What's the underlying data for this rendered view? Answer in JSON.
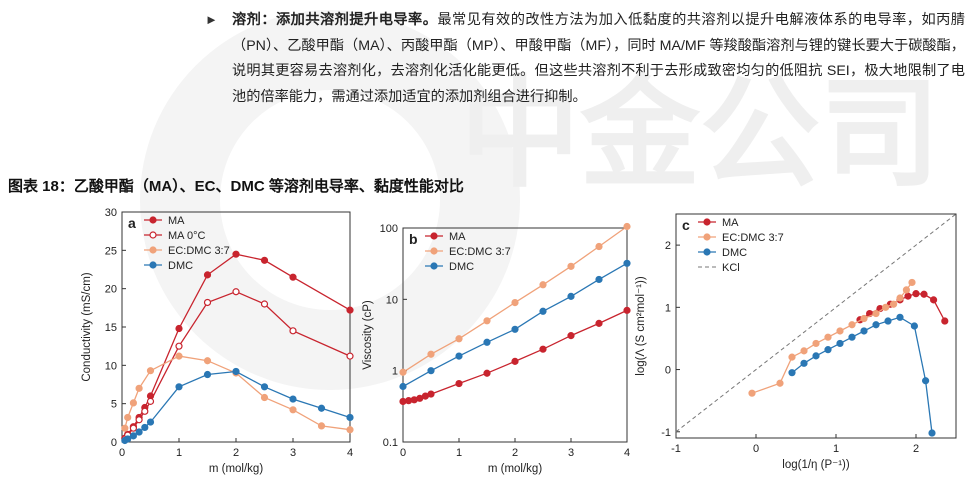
{
  "text": {
    "bullet_lead": "溶剂：添加共溶剂提升电导率。",
    "bullet_body": "最常见有效的改性方法为加入低黏度的共溶剂以提升电解液体系的电导率，如丙腈（PN）、乙酸甲酯（MA）、丙酸甲酯（MP）、甲酸甲酯（MF），同时 MA/MF 等羧酸酯溶剂与锂的键长要大于碳酸酯，说明其更容易去溶剂化，去溶剂化活化能更低。但这些共溶剂不利于去形成致密均匀的低阻抗 SEI，极大地限制了电池的倍率能力，需通过添加适宜的添加剂组合进行抑制。",
    "figure_caption": "图表 18：乙酸甲酯（MA）、EC、DMC 等溶剂电导率、黏度性能对比"
  },
  "watermark": {
    "text": "中金公司",
    "color": "#eeeeee"
  },
  "colors": {
    "MA": "#c8242e",
    "EC": "#f0a27a",
    "DMC": "#2a77b4",
    "KCl": "#777777",
    "MA0": "#c8242e"
  },
  "chart_data": [
    {
      "panel": "a",
      "type": "line",
      "xlabel": "m (mol/kg)",
      "ylabel": "Conductivity (mS/cm)",
      "xlim": [
        0,
        4
      ],
      "ylim": [
        0,
        30
      ],
      "xticks": [
        "0",
        "1",
        "2",
        "3",
        "4"
      ],
      "yticks": [
        "0",
        "5",
        "10",
        "15",
        "20",
        "25",
        "30"
      ],
      "legend": "top-left",
      "series": [
        {
          "name": "MA",
          "marker": "filled",
          "color": "#c8242e",
          "x": [
            0.05,
            0.1,
            0.2,
            0.3,
            0.4,
            0.5,
            1.0,
            1.5,
            2.0,
            2.5,
            3.0,
            4.0
          ],
          "y": [
            0.5,
            1.0,
            2.0,
            3.2,
            4.5,
            6.0,
            14.8,
            21.8,
            24.5,
            23.7,
            21.5,
            17.2
          ]
        },
        {
          "name": "MA 0°C",
          "marker": "open",
          "color": "#c8242e",
          "x": [
            0.05,
            0.1,
            0.2,
            0.3,
            0.4,
            0.5,
            1.0,
            1.5,
            2.0,
            2.5,
            3.0,
            4.0
          ],
          "y": [
            0.4,
            0.9,
            1.8,
            2.9,
            4.0,
            5.3,
            12.5,
            18.2,
            19.6,
            18.0,
            14.5,
            11.2
          ]
        },
        {
          "name": "EC:DMC 3:7",
          "marker": "filled",
          "color": "#f0a27a",
          "x": [
            0.05,
            0.1,
            0.2,
            0.3,
            0.5,
            1.0,
            1.5,
            2.0,
            2.5,
            3.0,
            3.5,
            4.0
          ],
          "y": [
            1.8,
            3.2,
            5.1,
            7.0,
            9.3,
            11.2,
            10.6,
            9.0,
            5.8,
            4.2,
            2.1,
            1.6
          ]
        },
        {
          "name": "DMC",
          "marker": "filled",
          "color": "#2a77b4",
          "x": [
            0.05,
            0.1,
            0.2,
            0.3,
            0.4,
            0.5,
            1.0,
            1.5,
            2.0,
            2.5,
            3.0,
            3.5,
            4.0
          ],
          "y": [
            0.2,
            0.4,
            0.8,
            1.3,
            1.9,
            2.6,
            7.2,
            8.8,
            9.2,
            7.2,
            5.6,
            4.4,
            3.2
          ]
        }
      ]
    },
    {
      "panel": "b",
      "type": "line",
      "scale": "log",
      "xlabel": "m (mol/kg)",
      "ylabel": "Viscosity (cP)",
      "xlim": [
        0,
        4
      ],
      "ylim": [
        0.1,
        100
      ],
      "xticks": [
        "0",
        "1",
        "2",
        "3",
        "4"
      ],
      "yticks": [
        "0.1",
        "1",
        "10",
        "100"
      ],
      "legend": "top-left",
      "series": [
        {
          "name": "MA",
          "marker": "filled",
          "color": "#c8242e",
          "x": [
            0,
            0.1,
            0.2,
            0.3,
            0.4,
            0.5,
            1.0,
            1.5,
            2.0,
            2.5,
            3.0,
            3.5,
            4.0
          ],
          "y": [
            0.37,
            0.38,
            0.39,
            0.41,
            0.44,
            0.47,
            0.66,
            0.92,
            1.35,
            2.0,
            3.1,
            4.6,
            7.0
          ]
        },
        {
          "name": "EC:DMC 3:7",
          "marker": "filled",
          "color": "#f0a27a",
          "x": [
            0,
            0.5,
            1.0,
            1.5,
            2.0,
            2.5,
            3.0,
            3.5,
            4.0
          ],
          "y": [
            0.95,
            1.7,
            2.8,
            5.0,
            9.0,
            16,
            29,
            55,
            105
          ]
        },
        {
          "name": "DMC",
          "marker": "filled",
          "color": "#2a77b4",
          "x": [
            0,
            0.5,
            1.0,
            1.5,
            2.0,
            2.5,
            3.0,
            3.5,
            4.0
          ],
          "y": [
            0.6,
            1.0,
            1.6,
            2.5,
            3.8,
            6.8,
            11,
            19,
            32
          ]
        }
      ]
    },
    {
      "panel": "c",
      "type": "line",
      "xlabel": "log(1/η (P⁻¹))",
      "ylabel": "log(Λ (S cm²mol⁻¹))",
      "xlim": [
        -1,
        2.5
      ],
      "ylim": [
        -1.1,
        2.5
      ],
      "xticks": [
        "-1",
        "0",
        "1",
        "2"
      ],
      "yticks": [
        "-1",
        "0",
        "1",
        "2"
      ],
      "legend": "top-left",
      "series": [
        {
          "name": "MA",
          "marker": "filled",
          "color": "#c8242e",
          "x": [
            1.3,
            1.42,
            1.55,
            1.68,
            1.8,
            1.9,
            2.0,
            2.1,
            2.22,
            2.36
          ],
          "y": [
            0.8,
            0.9,
            0.98,
            1.05,
            1.12,
            1.18,
            1.22,
            1.21,
            1.12,
            0.78
          ]
        },
        {
          "name": "EC:DMC 3:7",
          "marker": "filled",
          "color": "#f0a27a",
          "x": [
            -0.05,
            0.3,
            0.45,
            0.6,
            0.75,
            0.9,
            1.05,
            1.2,
            1.35,
            1.5,
            1.62,
            1.72,
            1.8,
            1.88,
            1.95
          ],
          "y": [
            -0.38,
            -0.22,
            0.2,
            0.3,
            0.42,
            0.52,
            0.62,
            0.72,
            0.82,
            0.9,
            1.0,
            1.05,
            1.15,
            1.28,
            1.4
          ]
        },
        {
          "name": "DMC",
          "marker": "filled",
          "color": "#2a77b4",
          "x": [
            0.45,
            0.6,
            0.75,
            0.9,
            1.05,
            1.2,
            1.35,
            1.5,
            1.65,
            1.8,
            1.98,
            2.12,
            2.2
          ],
          "y": [
            -0.05,
            0.1,
            0.22,
            0.32,
            0.42,
            0.52,
            0.62,
            0.72,
            0.78,
            0.84,
            0.7,
            -0.18,
            -1.02
          ]
        },
        {
          "name": "KCl",
          "marker": "none",
          "dashed": true,
          "color": "#777777",
          "x": [
            -1.0,
            2.5
          ],
          "y": [
            -1.0,
            2.5
          ]
        }
      ]
    }
  ]
}
